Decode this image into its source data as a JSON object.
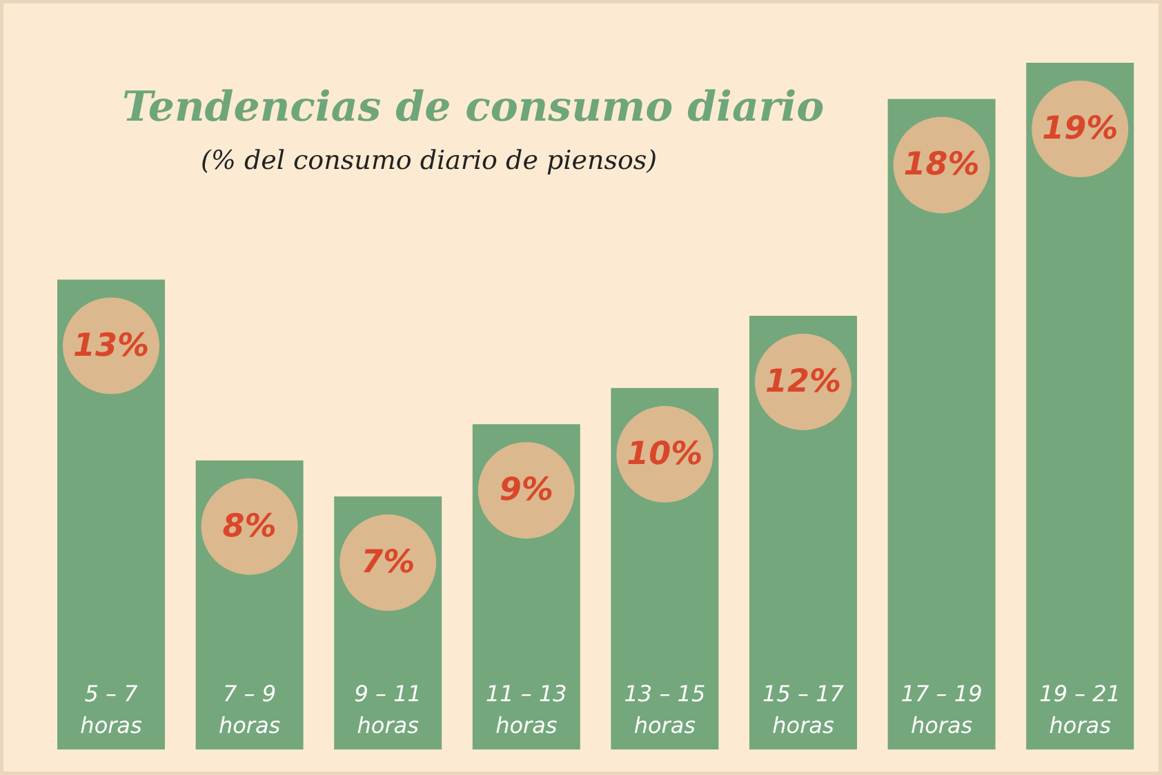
{
  "chart_data": {
    "type": "bar",
    "title": "Tendencias de consumo diario",
    "subtitle": "(% del consumo diario de piensos)",
    "categories": [
      "5 – 7 horas",
      "7 – 9 horas",
      "9 – 11 horas",
      "11 – 13 horas",
      "13 – 15 horas",
      "15 – 17 horas",
      "17 – 19 horas",
      "19 – 21 horas"
    ],
    "values": [
      13,
      8,
      7,
      9,
      10,
      12,
      18,
      19
    ],
    "value_labels": [
      "13%",
      "8%",
      "7%",
      "9%",
      "10%",
      "12%",
      "18%",
      "19%"
    ],
    "color": "#74a77c"
  }
}
